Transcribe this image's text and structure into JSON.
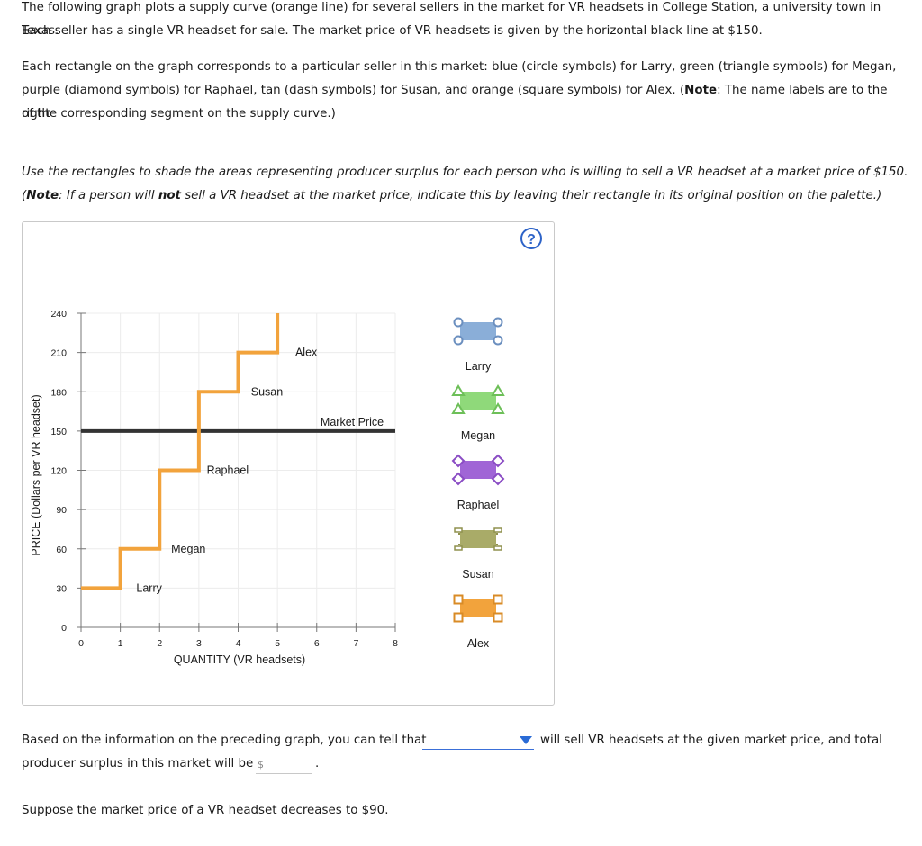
{
  "intro": {
    "p1": "The following graph plots a supply curve (orange line) for several sellers in the market for VR headsets in College Station, a university town in Texas.",
    "p1b": "Each seller has a single VR headset for sale. The market price of VR headsets is given by the horizontal black line at $150.",
    "p2a": "Each rectangle on the graph corresponds to a particular seller in this market: blue (circle symbols) for Larry, green (triangle symbols) for Megan,",
    "p2b": "purple (diamond symbols) for Raphael, tan (dash symbols) for Susan, and orange (square symbols) for Alex. (",
    "p2_note": "Note",
    "p2c": ": The name labels are to the right",
    "p2d": "of the corresponding segment on the supply curve.)"
  },
  "instructions": {
    "line1": "Use the rectangles to shade the areas representing producer surplus for each person who is willing to sell a VR headset at a market price of $150.",
    "line2_a": "(",
    "line2_note": "Note",
    "line2_b": ": If a person will ",
    "line2_not": "not",
    "line2_c": " sell a VR headset at the market price, indicate this by leaving their rectangle in its original position on the palette.)"
  },
  "help_symbol": "?",
  "chart_data": {
    "type": "line",
    "xlabel": "QUANTITY (VR headsets)",
    "ylabel": "PRICE (Dollars per VR headset)",
    "xlim": [
      0,
      8
    ],
    "ylim": [
      0,
      240
    ],
    "x_ticks": [
      "0",
      "1",
      "2",
      "3",
      "4",
      "5",
      "6",
      "7",
      "8"
    ],
    "y_ticks": [
      "0",
      "30",
      "60",
      "90",
      "120",
      "150",
      "180",
      "210",
      "240"
    ],
    "grid": true,
    "supply_color": "#f2a33c",
    "market_price_color": "#333333",
    "supply_steps": [
      {
        "seller": "Larry",
        "x_from": 0,
        "x_to": 1,
        "price": 30
      },
      {
        "seller": "Megan",
        "x_from": 1,
        "x_to": 2,
        "price": 60
      },
      {
        "seller": "Raphael",
        "x_from": 2,
        "x_to": 3,
        "price": 120
      },
      {
        "seller": "Susan",
        "x_from": 3,
        "x_to": 4,
        "price": 180
      },
      {
        "seller": "Alex",
        "x_from": 4,
        "x_to": 5,
        "price": 210
      }
    ],
    "supply_end_price": 240,
    "market_price": 150,
    "market_price_label": "Market Price"
  },
  "palette": [
    {
      "name": "Larry",
      "shape": "circle",
      "fill": "#8aaed8",
      "stroke": "#6b8fbf"
    },
    {
      "name": "Megan",
      "shape": "triangle",
      "fill": "#8fd97a",
      "stroke": "#6dbf58"
    },
    {
      "name": "Raphael",
      "shape": "diamond",
      "fill": "#a065d6",
      "stroke": "#8a4cc4"
    },
    {
      "name": "Susan",
      "shape": "dash",
      "fill": "#a9ab68",
      "stroke": "#8f914e"
    },
    {
      "name": "Alex",
      "shape": "square",
      "fill": "#f2a33c",
      "stroke": "#d98b26"
    }
  ],
  "question": {
    "text_before": "Based on the information on the preceding graph, you can tell that",
    "text_after": "will sell VR headsets at the given market price, and total",
    "line2": "producer surplus in this market will be",
    "dollar_placeholder": "$",
    "period": ".",
    "dropdown_value": ""
  },
  "followup": "Suppose the market price of a VR headset decreases to $90."
}
